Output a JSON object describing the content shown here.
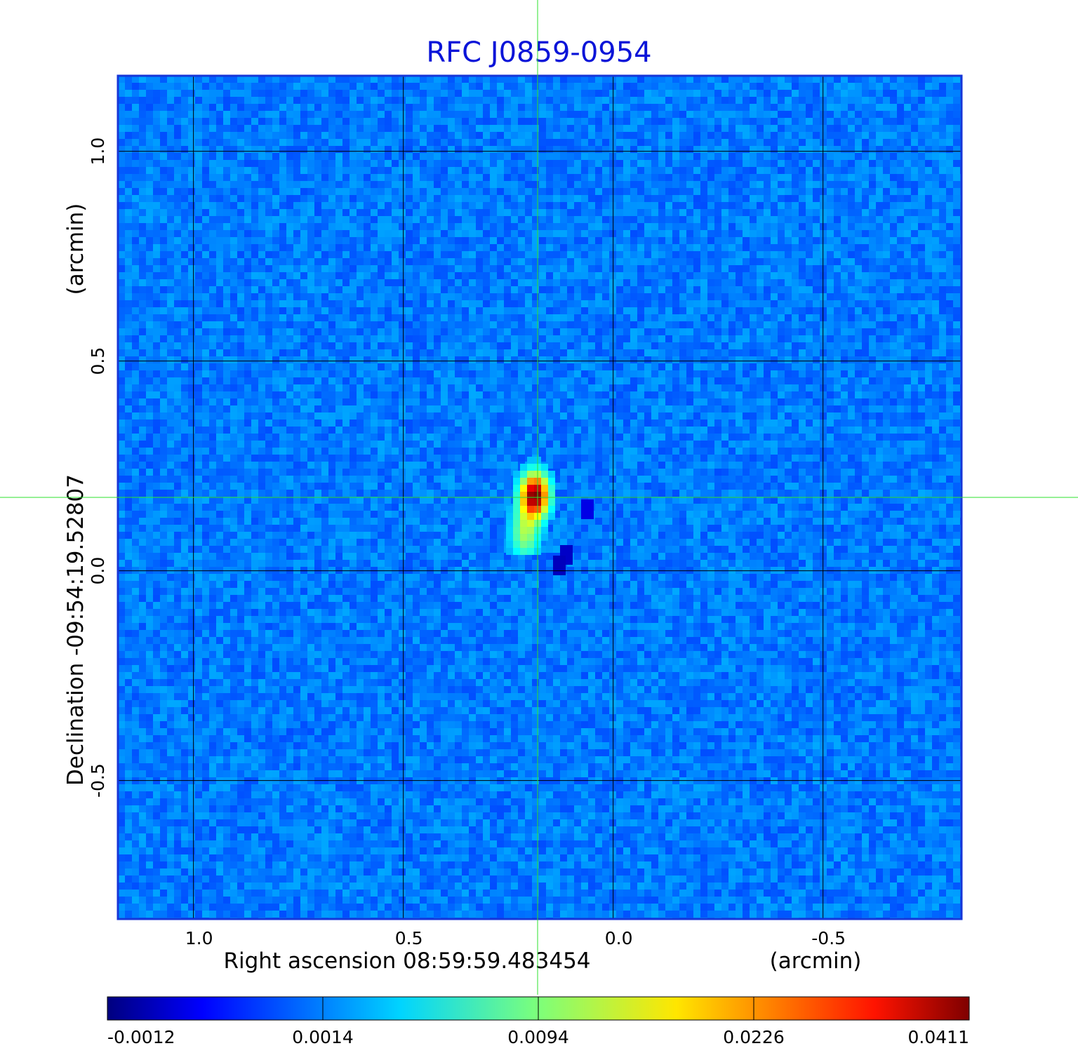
{
  "chart_data": {
    "type": "heatmap",
    "title": "RFC J0859-0954",
    "title_color": "#0a14d8",
    "xlabel": "Right ascension  08:59:59.483454",
    "xunit": "(arcmin)",
    "ylabel": "Declination  -09:54:19.52807",
    "yunit": "(arcmin)",
    "xlim": [
      1.18,
      -0.83
    ],
    "ylim": [
      -0.83,
      1.18
    ],
    "x_ticks": [
      1.0,
      0.5,
      0.0,
      -0.5
    ],
    "x_tick_labels": [
      "1.0",
      "0.5",
      "0.0",
      "-0.5"
    ],
    "y_ticks": [
      -0.5,
      0.0,
      0.5,
      1.0
    ],
    "y_tick_labels": [
      "-0.5",
      "0.0",
      "0.5",
      "1.0"
    ],
    "grid": true,
    "crosshair": {
      "x": 0.18,
      "y": 0.175,
      "color": "#2ee02e"
    },
    "source": {
      "ra_offset": 0.18,
      "dec_offset": 0.18,
      "peak": 0.0411
    },
    "colorscale": "jet",
    "colorbar_ticks": [
      "-0.0012",
      "0.0014",
      "0.0094",
      "0.0226",
      "0.0411"
    ],
    "colorbar_range": [
      -0.0012,
      0.0411
    ]
  }
}
